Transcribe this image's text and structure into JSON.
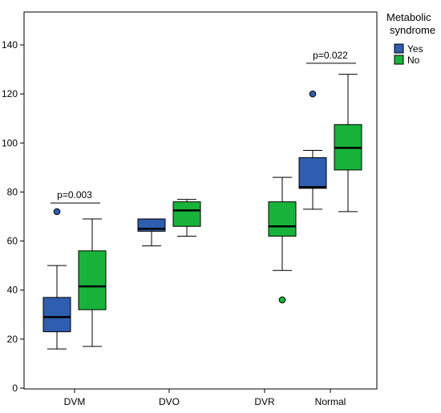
{
  "chart_data": {
    "type": "box",
    "title": "",
    "xlabel": "",
    "ylabel": "",
    "ylim": [
      0,
      150
    ],
    "yticks": [
      0,
      20,
      40,
      60,
      80,
      100,
      120,
      140
    ],
    "grid": false,
    "legend": {
      "title_line1": "Metabolic",
      "title_line2": "syndrome",
      "placement": "top-right",
      "entries": [
        {
          "label": "Yes",
          "color": "#2f5db0"
        },
        {
          "label": "No",
          "color": "#18b33a"
        }
      ]
    },
    "categories": [
      "DVM",
      "DVO",
      "DVR",
      "Normal"
    ],
    "boxes": [
      {
        "category": "DVM",
        "group": "Yes",
        "min": 16,
        "q1": 23,
        "median": 29,
        "q3": 37,
        "max": 50,
        "outliers": [
          72
        ]
      },
      {
        "category": "DVM",
        "group": "No",
        "min": 17,
        "q1": 32,
        "median": 41.5,
        "q3": 56,
        "max": 69,
        "outliers": []
      },
      {
        "category": "DVO",
        "group": "Yes",
        "min": 58,
        "q1": 64,
        "median": 65,
        "q3": 69,
        "max": 69,
        "outliers": []
      },
      {
        "category": "DVO",
        "group": "No",
        "min": 62,
        "q1": 66,
        "median": 72.5,
        "q3": 76,
        "max": 77,
        "outliers": []
      },
      {
        "category": "DVR",
        "group": "No",
        "min": 48,
        "q1": 62,
        "median": 66,
        "q3": 76,
        "max": 86,
        "outliers": [
          36
        ]
      },
      {
        "category": "Normal",
        "group": "Yes",
        "min": 73,
        "q1": 81.5,
        "median": 82,
        "q3": 94,
        "max": 97,
        "outliers": [
          120
        ]
      },
      {
        "category": "Normal",
        "group": "No",
        "min": 72,
        "q1": 89,
        "median": 98,
        "q3": 107.5,
        "max": 128,
        "outliers": []
      }
    ],
    "annotations": [
      {
        "text": "p=0.003",
        "category": "DVM",
        "y": 75.5
      },
      {
        "text": "p=0.022",
        "category": "Normal",
        "y": 132.5
      }
    ]
  }
}
